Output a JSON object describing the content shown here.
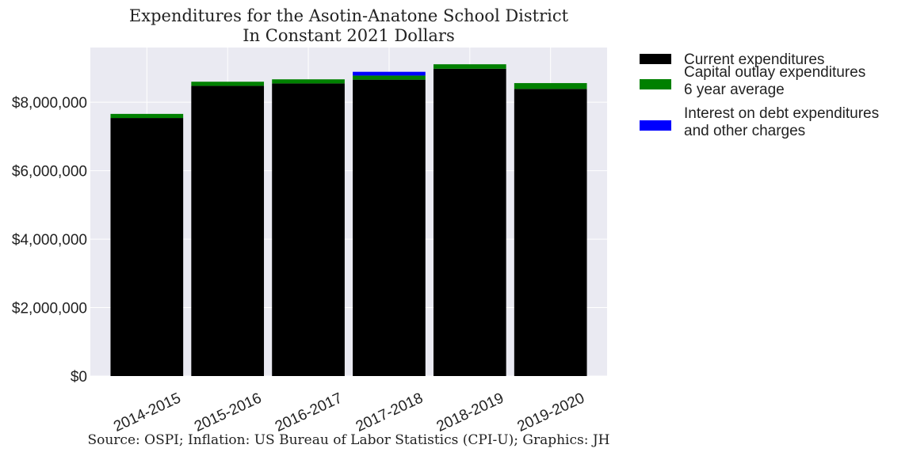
{
  "chart_data": {
    "type": "bar",
    "stacked": true,
    "title": "Expenditures for the Asotin-Anatone School District",
    "subtitle": "In Constant 2021 Dollars",
    "source": "Source: OSPI; Inflation: US Bureau of Labor Statistics (CPI-U); Graphics: JH",
    "xlabel": "",
    "ylabel": "",
    "ylim": [
      0,
      9600000
    ],
    "yticks": [
      0,
      2000000,
      4000000,
      6000000,
      8000000
    ],
    "ytick_labels": [
      "$0",
      "$2,000,000",
      "$4,000,000",
      "$6,000,000",
      "$8,000,000"
    ],
    "grid": true,
    "legend_position": "outside-top-right",
    "categories": [
      "2014-2015",
      "2015-2016",
      "2016-2017",
      "2017-2018",
      "2018-2019",
      "2019-2020"
    ],
    "series": [
      {
        "name": "Current expenditures",
        "color": "#000000",
        "values": [
          7540000,
          8480000,
          8550000,
          8660000,
          8980000,
          8390000
        ]
      },
      {
        "name": "Capital outlay expenditures",
        "name_line2": "6 year average",
        "color": "#008000",
        "values": [
          120000,
          120000,
          120000,
          120000,
          130000,
          170000
        ]
      },
      {
        "name": "Interest on debt expenditures",
        "name_line2": "and other charges",
        "color": "#0000ff",
        "values": [
          0,
          0,
          0,
          110000,
          0,
          0
        ]
      }
    ]
  }
}
